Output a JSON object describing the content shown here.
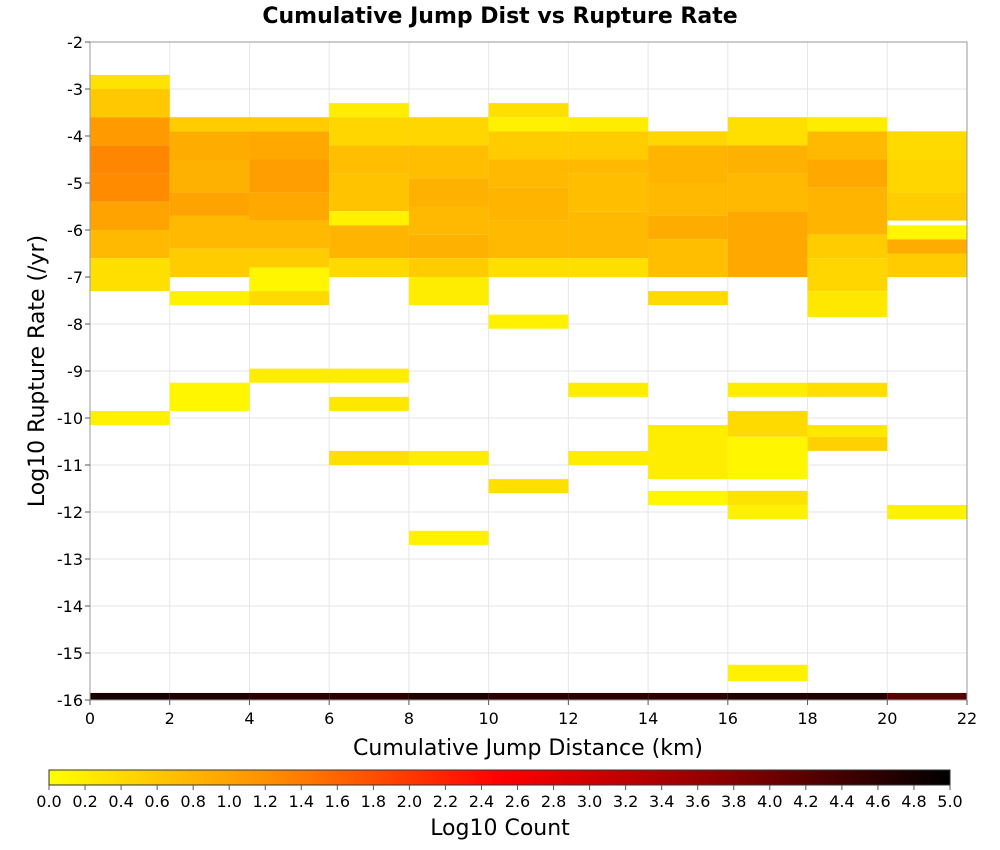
{
  "chart_data": {
    "type": "heatmap",
    "title": "Cumulative Jump Dist vs Rupture Rate",
    "xlabel": "Cumulative Jump Distance (km)",
    "ylabel": "Log10 Rupture Rate (/yr)",
    "xlim": [
      0,
      22
    ],
    "ylim": [
      -16,
      -2
    ],
    "x_ticks": [
      "0",
      "2",
      "4",
      "6",
      "8",
      "10",
      "12",
      "14",
      "16",
      "18",
      "20",
      "22"
    ],
    "y_ticks": [
      "-2",
      "-3",
      "-4",
      "-5",
      "-6",
      "-7",
      "-8",
      "-9",
      "-10",
      "-11",
      "-12",
      "-13",
      "-14",
      "-15",
      "-16"
    ],
    "bin_width_x": 2,
    "bin_height_y": 0.3,
    "grid": true,
    "colorbar": {
      "label": "Log10 Count",
      "range": [
        0,
        5
      ],
      "ticks": [
        "0.0",
        "0.2",
        "0.4",
        "0.6",
        "0.8",
        "1.0",
        "1.2",
        "1.4",
        "1.6",
        "1.8",
        "2.0",
        "2.2",
        "2.4",
        "2.6",
        "2.8",
        "3.0",
        "3.2",
        "3.4",
        "3.6",
        "3.8",
        "4.0",
        "4.2",
        "4.4",
        "4.6",
        "4.8",
        "5.0"
      ],
      "colors": [
        "#ffff00",
        "#ff8c00",
        "#ff0000",
        "#8b0000",
        "#000000"
      ]
    },
    "columns": [
      {
        "x0": 0,
        "cells": [
          {
            "y0": -3.0,
            "y1": -2.7,
            "v": 0.3
          },
          {
            "y0": -3.6,
            "y1": -3.0,
            "v": 0.6
          },
          {
            "y0": -4.2,
            "y1": -3.6,
            "v": 1.1
          },
          {
            "y0": -4.8,
            "y1": -4.2,
            "v": 1.3
          },
          {
            "y0": -5.4,
            "y1": -4.8,
            "v": 1.25
          },
          {
            "y0": -6.0,
            "y1": -5.4,
            "v": 1.0
          },
          {
            "y0": -6.6,
            "y1": -6.0,
            "v": 0.75
          },
          {
            "y0": -7.3,
            "y1": -6.6,
            "v": 0.35
          },
          {
            "y0": -10.15,
            "y1": -9.85,
            "v": 0.15
          },
          {
            "y0": -16.0,
            "y1": -15.85,
            "v": 4.8
          }
        ]
      },
      {
        "x0": 2,
        "cells": [
          {
            "y0": -3.9,
            "y1": -3.6,
            "v": 0.55
          },
          {
            "y0": -4.5,
            "y1": -3.9,
            "v": 0.9
          },
          {
            "y0": -5.2,
            "y1": -4.5,
            "v": 0.85
          },
          {
            "y0": -5.7,
            "y1": -5.2,
            "v": 1.0
          },
          {
            "y0": -6.4,
            "y1": -5.7,
            "v": 0.75
          },
          {
            "y0": -7.0,
            "y1": -6.4,
            "v": 0.55
          },
          {
            "y0": -7.6,
            "y1": -7.3,
            "v": 0.15
          },
          {
            "y0": -9.85,
            "y1": -9.25,
            "v": 0.1
          },
          {
            "y0": -16.0,
            "y1": -15.85,
            "v": 4.7
          }
        ]
      },
      {
        "x0": 4,
        "cells": [
          {
            "y0": -3.9,
            "y1": -3.6,
            "v": 0.55
          },
          {
            "y0": -4.5,
            "y1": -3.9,
            "v": 0.95
          },
          {
            "y0": -5.2,
            "y1": -4.5,
            "v": 1.05
          },
          {
            "y0": -5.8,
            "y1": -5.2,
            "v": 0.95
          },
          {
            "y0": -6.4,
            "y1": -5.8,
            "v": 0.75
          },
          {
            "y0": -6.8,
            "y1": -6.4,
            "v": 0.55
          },
          {
            "y0": -7.3,
            "y1": -6.8,
            "v": 0.1
          },
          {
            "y0": -7.6,
            "y1": -7.3,
            "v": 0.4
          },
          {
            "y0": -9.25,
            "y1": -8.95,
            "v": 0.2
          },
          {
            "y0": -16.0,
            "y1": -15.85,
            "v": 4.6
          }
        ]
      },
      {
        "x0": 6,
        "cells": [
          {
            "y0": -3.6,
            "y1": -3.3,
            "v": 0.2
          },
          {
            "y0": -4.2,
            "y1": -3.6,
            "v": 0.45
          },
          {
            "y0": -4.8,
            "y1": -4.2,
            "v": 0.7
          },
          {
            "y0": -5.6,
            "y1": -4.8,
            "v": 0.65
          },
          {
            "y0": -5.9,
            "y1": -5.6,
            "v": 0.15
          },
          {
            "y0": -6.6,
            "y1": -5.9,
            "v": 0.8
          },
          {
            "y0": -7.0,
            "y1": -6.6,
            "v": 0.4
          },
          {
            "y0": -9.25,
            "y1": -8.95,
            "v": 0.2
          },
          {
            "y0": -9.85,
            "y1": -9.55,
            "v": 0.25
          },
          {
            "y0": -11.0,
            "y1": -10.7,
            "v": 0.35
          },
          {
            "y0": -16.0,
            "y1": -15.85,
            "v": 4.6
          }
        ]
      },
      {
        "x0": 8,
        "cells": [
          {
            "y0": -4.2,
            "y1": -3.6,
            "v": 0.45
          },
          {
            "y0": -4.9,
            "y1": -4.2,
            "v": 0.7
          },
          {
            "y0": -5.5,
            "y1": -4.9,
            "v": 0.85
          },
          {
            "y0": -6.1,
            "y1": -5.5,
            "v": 0.75
          },
          {
            "y0": -6.6,
            "y1": -6.1,
            "v": 0.85
          },
          {
            "y0": -7.0,
            "y1": -6.6,
            "v": 0.55
          },
          {
            "y0": -7.6,
            "y1": -7.0,
            "v": 0.2
          },
          {
            "y0": -11.0,
            "y1": -10.7,
            "v": 0.2
          },
          {
            "y0": -12.7,
            "y1": -12.4,
            "v": 0.15
          },
          {
            "y0": -16.0,
            "y1": -15.85,
            "v": 4.7
          }
        ]
      },
      {
        "x0": 10,
        "cells": [
          {
            "y0": -3.6,
            "y1": -3.3,
            "v": 0.35
          },
          {
            "y0": -3.9,
            "y1": -3.6,
            "v": 0.15
          },
          {
            "y0": -4.5,
            "y1": -3.9,
            "v": 0.55
          },
          {
            "y0": -5.1,
            "y1": -4.5,
            "v": 0.75
          },
          {
            "y0": -5.8,
            "y1": -5.1,
            "v": 0.8
          },
          {
            "y0": -6.6,
            "y1": -5.8,
            "v": 0.75
          },
          {
            "y0": -7.0,
            "y1": -6.6,
            "v": 0.35
          },
          {
            "y0": -8.1,
            "y1": -7.8,
            "v": 0.15
          },
          {
            "y0": -11.6,
            "y1": -11.3,
            "v": 0.35
          },
          {
            "y0": -16.0,
            "y1": -15.85,
            "v": 4.6
          }
        ]
      },
      {
        "x0": 12,
        "cells": [
          {
            "y0": -3.9,
            "y1": -3.6,
            "v": 0.2
          },
          {
            "y0": -4.5,
            "y1": -3.9,
            "v": 0.55
          },
          {
            "y0": -4.8,
            "y1": -4.5,
            "v": 0.75
          },
          {
            "y0": -5.6,
            "y1": -4.8,
            "v": 0.7
          },
          {
            "y0": -6.6,
            "y1": -5.6,
            "v": 0.75
          },
          {
            "y0": -7.0,
            "y1": -6.6,
            "v": 0.35
          },
          {
            "y0": -9.55,
            "y1": -9.25,
            "v": 0.2
          },
          {
            "y0": -11.0,
            "y1": -10.7,
            "v": 0.2
          },
          {
            "y0": -16.0,
            "y1": -15.85,
            "v": 4.6
          }
        ]
      },
      {
        "x0": 14,
        "cells": [
          {
            "y0": -4.2,
            "y1": -3.9,
            "v": 0.45
          },
          {
            "y0": -5.0,
            "y1": -4.2,
            "v": 0.8
          },
          {
            "y0": -5.7,
            "y1": -5.0,
            "v": 0.75
          },
          {
            "y0": -6.2,
            "y1": -5.7,
            "v": 0.9
          },
          {
            "y0": -7.0,
            "y1": -6.2,
            "v": 0.7
          },
          {
            "y0": -7.6,
            "y1": -7.3,
            "v": 0.4
          },
          {
            "y0": -11.3,
            "y1": -10.15,
            "v": 0.2
          },
          {
            "y0": -11.85,
            "y1": -11.55,
            "v": 0.1
          },
          {
            "y0": -16.0,
            "y1": -15.85,
            "v": 4.6
          }
        ]
      },
      {
        "x0": 16,
        "cells": [
          {
            "y0": -4.2,
            "y1": -3.6,
            "v": 0.35
          },
          {
            "y0": -4.8,
            "y1": -4.2,
            "v": 0.85
          },
          {
            "y0": -5.6,
            "y1": -4.8,
            "v": 0.75
          },
          {
            "y0": -6.0,
            "y1": -5.6,
            "v": 0.95
          },
          {
            "y0": -7.0,
            "y1": -6.0,
            "v": 0.95
          },
          {
            "y0": -9.55,
            "y1": -9.25,
            "v": 0.2
          },
          {
            "y0": -10.4,
            "y1": -9.85,
            "v": 0.4
          },
          {
            "y0": -11.3,
            "y1": -10.4,
            "v": 0.1
          },
          {
            "y0": -11.85,
            "y1": -11.55,
            "v": 0.3
          },
          {
            "y0": -12.15,
            "y1": -11.85,
            "v": 0.15
          },
          {
            "y0": -15.6,
            "y1": -15.25,
            "v": 0.15
          },
          {
            "y0": -16.0,
            "y1": -15.85,
            "v": 4.7
          }
        ]
      },
      {
        "x0": 18,
        "cells": [
          {
            "y0": -3.9,
            "y1": -3.6,
            "v": 0.2
          },
          {
            "y0": -4.5,
            "y1": -3.9,
            "v": 0.75
          },
          {
            "y0": -5.1,
            "y1": -4.5,
            "v": 0.95
          },
          {
            "y0": -6.1,
            "y1": -5.1,
            "v": 0.8
          },
          {
            "y0": -6.6,
            "y1": -6.1,
            "v": 0.55
          },
          {
            "y0": -7.3,
            "y1": -6.6,
            "v": 0.45
          },
          {
            "y0": -7.85,
            "y1": -7.3,
            "v": 0.25
          },
          {
            "y0": -9.55,
            "y1": -9.25,
            "v": 0.35
          },
          {
            "y0": -10.4,
            "y1": -10.15,
            "v": 0.25
          },
          {
            "y0": -10.7,
            "y1": -10.4,
            "v": 0.5
          },
          {
            "y0": -16.0,
            "y1": -15.85,
            "v": 4.7
          }
        ]
      },
      {
        "x0": 20,
        "cells": [
          {
            "y0": -4.5,
            "y1": -3.9,
            "v": 0.4
          },
          {
            "y0": -5.2,
            "y1": -4.5,
            "v": 0.45
          },
          {
            "y0": -5.8,
            "y1": -5.2,
            "v": 0.55
          },
          {
            "y0": -6.2,
            "y1": -5.9,
            "v": 0.1
          },
          {
            "y0": -6.5,
            "y1": -6.2,
            "v": 0.9
          },
          {
            "y0": -7.0,
            "y1": -6.5,
            "v": 0.55
          },
          {
            "y0": -12.15,
            "y1": -11.85,
            "v": 0.15
          },
          {
            "y0": -16.0,
            "y1": -15.85,
            "v": 4.2
          }
        ]
      }
    ]
  }
}
